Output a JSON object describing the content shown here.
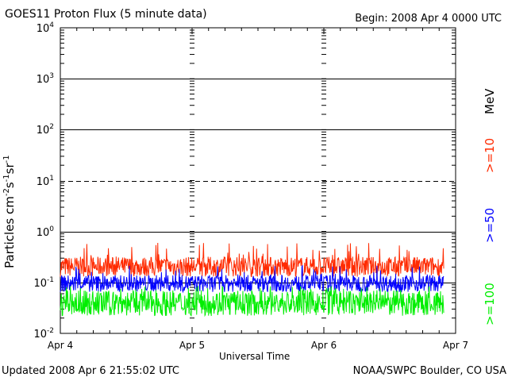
{
  "header": {
    "title": "GOES11 Proton Flux (5 minute data)",
    "begin": "Begin: 2008 Apr 4 0000 UTC"
  },
  "footer": {
    "updated": "Updated 2008 Apr  6 21:55:02 UTC",
    "credit": "NOAA/SWPC Boulder, CO USA"
  },
  "chart_data": {
    "type": "line",
    "xlabel": "Universal Time",
    "ylabel_base": "Particles cm",
    "ylabel_parts": [
      "Particles cm",
      "-2",
      "s",
      "-1",
      "sr",
      "-1"
    ],
    "x_ticks": [
      "Apr 4",
      "Apr 5",
      "Apr 6",
      "Apr 7"
    ],
    "x_range_days": [
      0,
      3
    ],
    "data_end_day": 2.913,
    "y_scale": "log",
    "ylim": [
      0.01,
      10000
    ],
    "y_ticks": [
      {
        "base": "10",
        "exp": "-2",
        "value": 0.01
      },
      {
        "base": "10",
        "exp": "-1",
        "value": 0.1
      },
      {
        "base": "10",
        "exp": "0",
        "value": 1
      },
      {
        "base": "10",
        "exp": "1",
        "value": 10
      },
      {
        "base": "10",
        "exp": "2",
        "value": 100
      },
      {
        "base": "10",
        "exp": "3",
        "value": 1000
      },
      {
        "base": "10",
        "exp": "4",
        "value": 10000
      }
    ],
    "dashed_levels": [
      10
    ],
    "units_label": "MeV",
    "series": [
      {
        "name": ">=10",
        "color": "#ff2a00",
        "typical_low": 0.13,
        "typical_high": 0.32,
        "peak": 0.6
      },
      {
        "name": ">=50",
        "color": "#0000ff",
        "typical_low": 0.065,
        "typical_high": 0.14,
        "peak": 0.22
      },
      {
        "name": ">=100",
        "color": "#00ee00",
        "typical_low": 0.022,
        "typical_high": 0.07,
        "peak": 0.085
      }
    ]
  }
}
